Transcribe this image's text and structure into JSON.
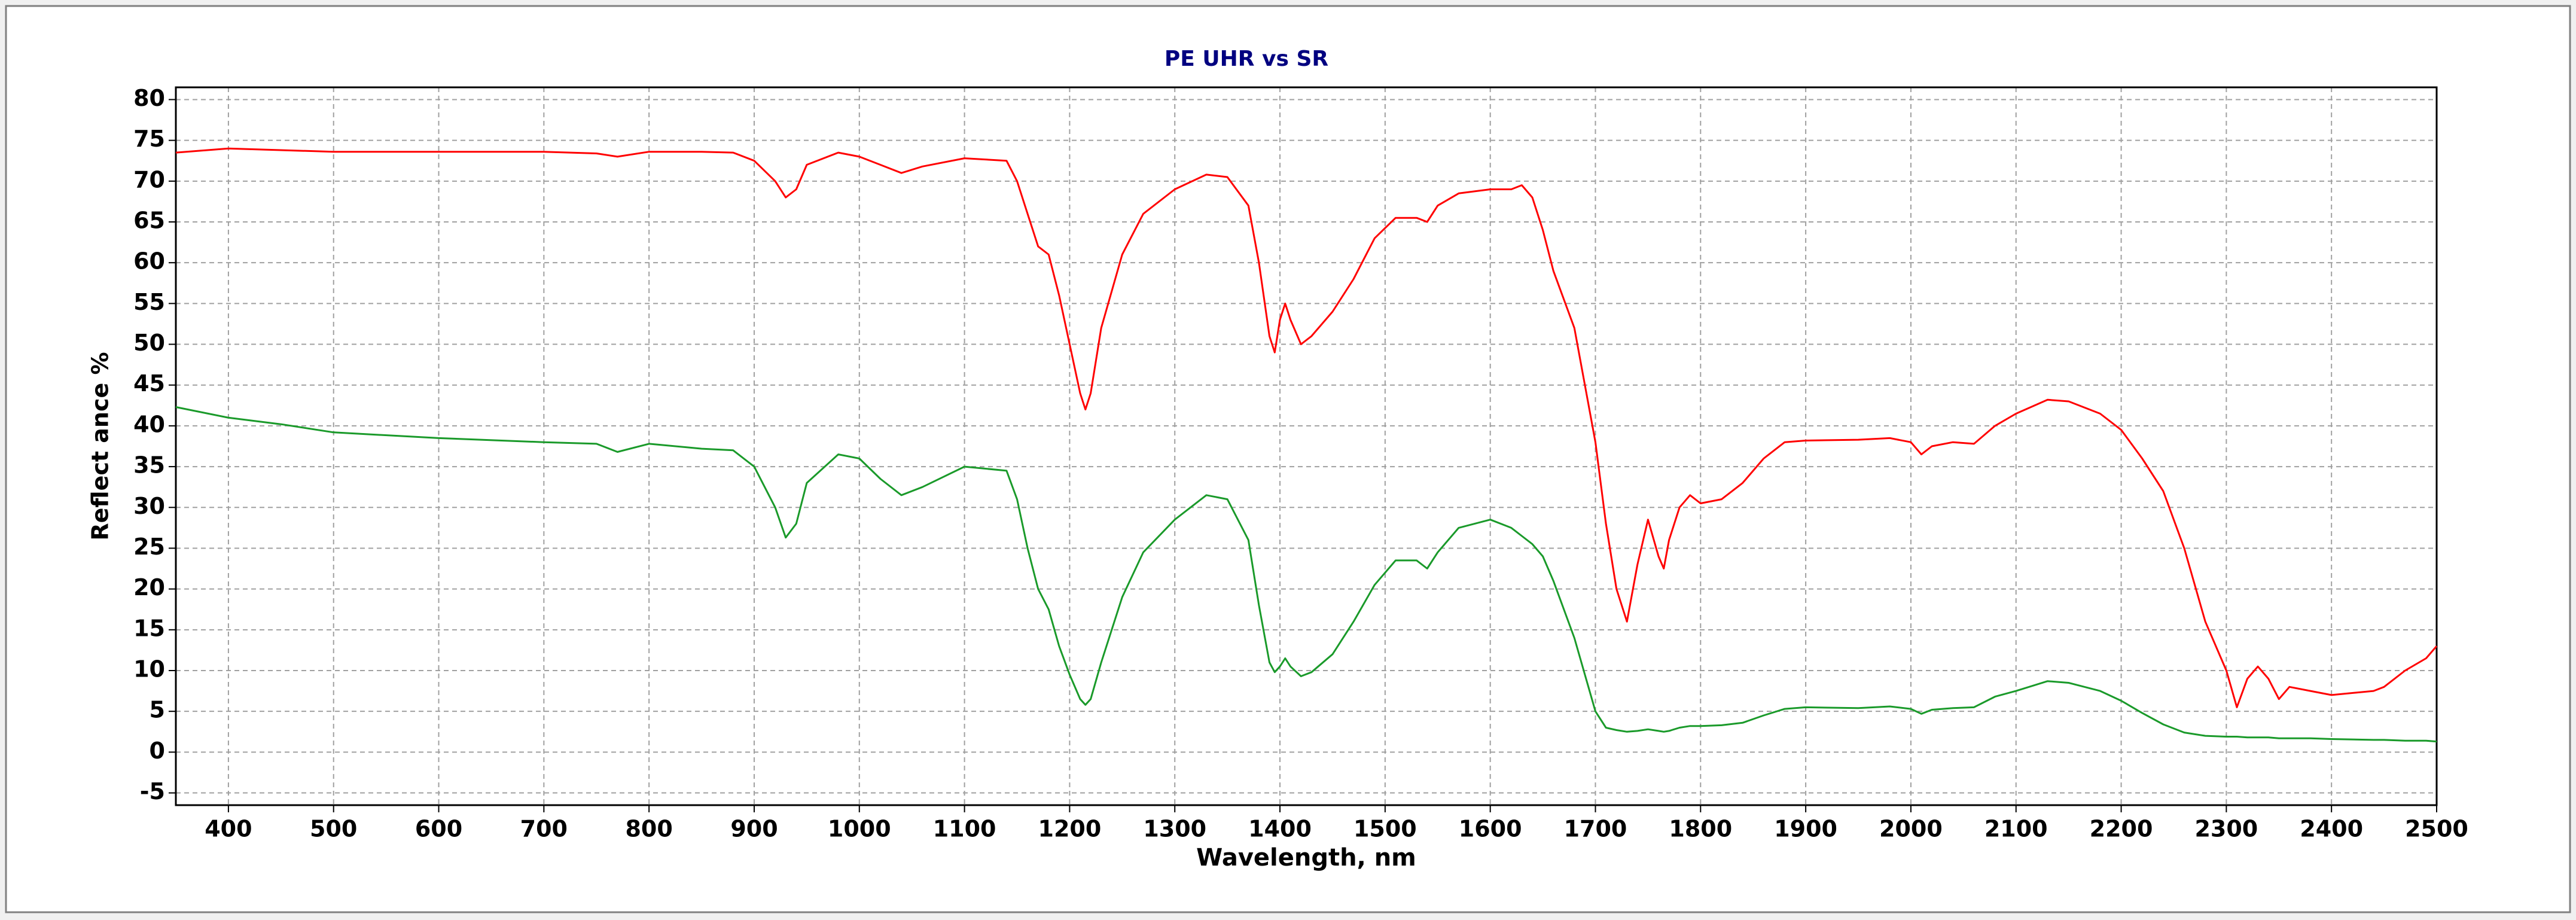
{
  "chart_data": {
    "type": "line",
    "title": "PE UHR vs SR",
    "x_label": "Wavelength, nm",
    "y_label": "Reflect ance %",
    "x": [
      350,
      400,
      450,
      500,
      600,
      700,
      750,
      770,
      800,
      850,
      880,
      900,
      920,
      930,
      940,
      950,
      980,
      1000,
      1020,
      1040,
      1060,
      1100,
      1140,
      1150,
      1160,
      1170,
      1180,
      1190,
      1200,
      1210,
      1215,
      1220,
      1230,
      1250,
      1270,
      1300,
      1330,
      1350,
      1370,
      1380,
      1390,
      1395,
      1400,
      1405,
      1410,
      1420,
      1430,
      1450,
      1470,
      1490,
      1510,
      1530,
      1540,
      1550,
      1570,
      1600,
      1620,
      1630,
      1640,
      1650,
      1660,
      1680,
      1700,
      1710,
      1720,
      1730,
      1740,
      1750,
      1760,
      1765,
      1770,
      1780,
      1790,
      1800,
      1820,
      1840,
      1860,
      1880,
      1900,
      1950,
      1980,
      2000,
      2010,
      2020,
      2040,
      2060,
      2080,
      2100,
      2130,
      2150,
      2180,
      2200,
      2220,
      2240,
      2260,
      2280,
      2300,
      2310,
      2320,
      2330,
      2340,
      2350,
      2360,
      2380,
      2400,
      2440,
      2450,
      2470,
      2490,
      2500
    ],
    "series": [
      {
        "color": "#ff0000",
        "values": [
          73.5,
          74,
          73.8,
          73.6,
          73.6,
          73.6,
          73.4,
          73,
          73.6,
          73.6,
          73.5,
          72.5,
          70,
          68,
          69,
          72,
          73.5,
          73,
          72,
          71,
          71.8,
          72.8,
          72.5,
          70,
          66,
          62,
          61,
          56,
          50,
          44,
          42,
          44,
          52,
          61,
          66,
          69,
          70.8,
          70.5,
          67,
          60,
          51,
          49,
          53,
          55,
          53,
          50,
          51,
          54,
          58,
          63,
          65.5,
          65.5,
          65,
          67,
          68.5,
          69,
          69,
          69.5,
          68,
          64,
          59,
          52,
          38,
          28,
          20,
          16,
          23,
          28.5,
          24,
          22.5,
          26,
          30,
          31.5,
          30.5,
          31,
          33,
          36,
          38,
          38.2,
          38.3,
          38.5,
          38,
          36.5,
          37.5,
          38,
          37.8,
          40,
          41.5,
          43.2,
          43,
          41.5,
          39.5,
          36,
          32,
          25,
          16,
          10,
          5.5,
          9,
          10.5,
          9,
          6.5,
          8,
          7.5,
          7,
          7.5,
          8,
          10,
          11.5,
          13
        ]
      },
      {
        "color": "#1a9a2a",
        "values": [
          42.3,
          41,
          40.2,
          39.2,
          38.5,
          38,
          37.8,
          36.8,
          37.8,
          37.2,
          37,
          35,
          30,
          26.3,
          28,
          33,
          36.5,
          36,
          33.5,
          31.5,
          32.5,
          35,
          34.5,
          31,
          25,
          20,
          17.5,
          13,
          9.5,
          6.5,
          5.8,
          6.5,
          11,
          19,
          24.5,
          28.5,
          31.5,
          31,
          26,
          18,
          11,
          9.8,
          10.5,
          11.5,
          10.5,
          9.3,
          9.8,
          12,
          16,
          20.5,
          23.5,
          23.5,
          22.5,
          24.5,
          27.5,
          28.5,
          27.5,
          26.5,
          25.5,
          24,
          21,
          14,
          5,
          3,
          2.7,
          2.5,
          2.6,
          2.8,
          2.6,
          2.5,
          2.6,
          3,
          3.2,
          3.2,
          3.3,
          3.6,
          4.5,
          5.3,
          5.5,
          5.4,
          5.6,
          5.3,
          4.7,
          5.2,
          5.4,
          5.5,
          6.8,
          7.5,
          8.7,
          8.5,
          7.5,
          6.3,
          4.8,
          3.4,
          2.4,
          2,
          1.9,
          1.9,
          1.8,
          1.8,
          1.8,
          1.7,
          1.7,
          1.7,
          1.6,
          1.5,
          1.5,
          1.4,
          1.4,
          1.3
        ]
      }
    ],
    "xlim": [
      350,
      2500
    ],
    "ylim": [
      -6.5,
      81.5
    ],
    "xticks": [
      400,
      500,
      600,
      700,
      800,
      900,
      1000,
      1100,
      1200,
      1300,
      1400,
      1500,
      1600,
      1700,
      1800,
      1900,
      2000,
      2100,
      2200,
      2300,
      2400,
      2500
    ],
    "yticks": [
      -5,
      0,
      5,
      10,
      15,
      20,
      25,
      30,
      35,
      40,
      45,
      50,
      55,
      60,
      65,
      70,
      75,
      80
    ],
    "grid": true
  }
}
